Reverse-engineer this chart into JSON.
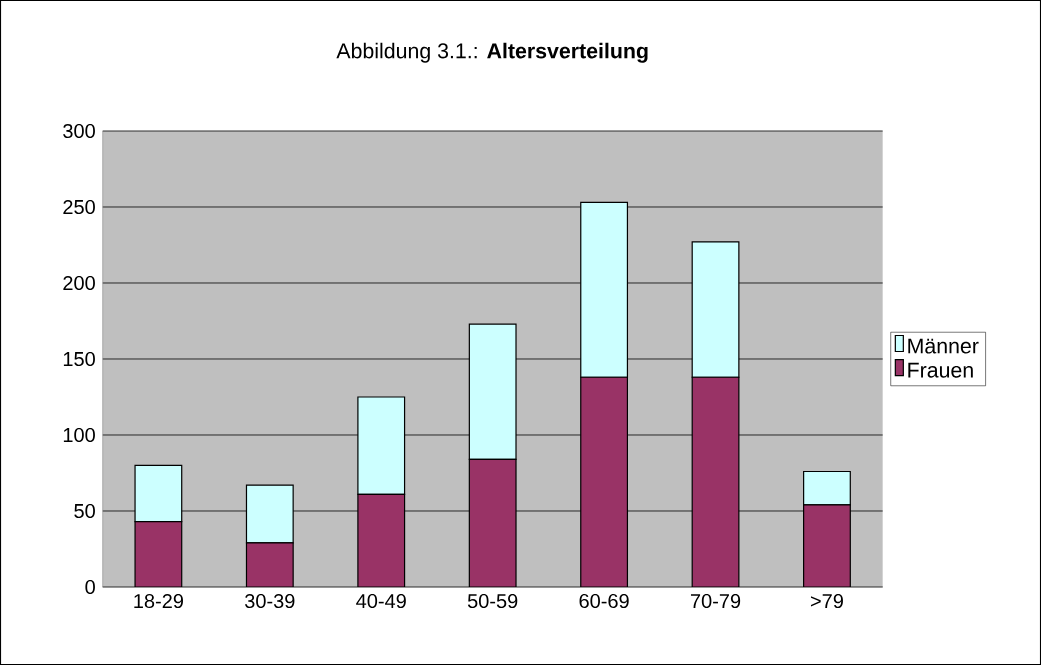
{
  "chart_data": {
    "type": "bar",
    "stacked": true,
    "title": "Abbildung 3.1.: **Altersverteilung**",
    "categories": [
      "18-29",
      "30-39",
      "40-49",
      "50-59",
      "60-69",
      "70-79",
      ">79"
    ],
    "series": [
      {
        "name": "Frauen",
        "color": "#993366",
        "values": [
          43,
          29,
          61,
          84,
          138,
          138,
          54
        ]
      },
      {
        "name": "Männer",
        "color": "#ccffff",
        "values": [
          37,
          38,
          64,
          89,
          115,
          89,
          22
        ]
      }
    ],
    "ylim": [
      0,
      300
    ],
    "yticks": [
      0,
      50,
      100,
      150,
      200,
      250,
      300
    ],
    "grid": "y",
    "legend": "right"
  }
}
